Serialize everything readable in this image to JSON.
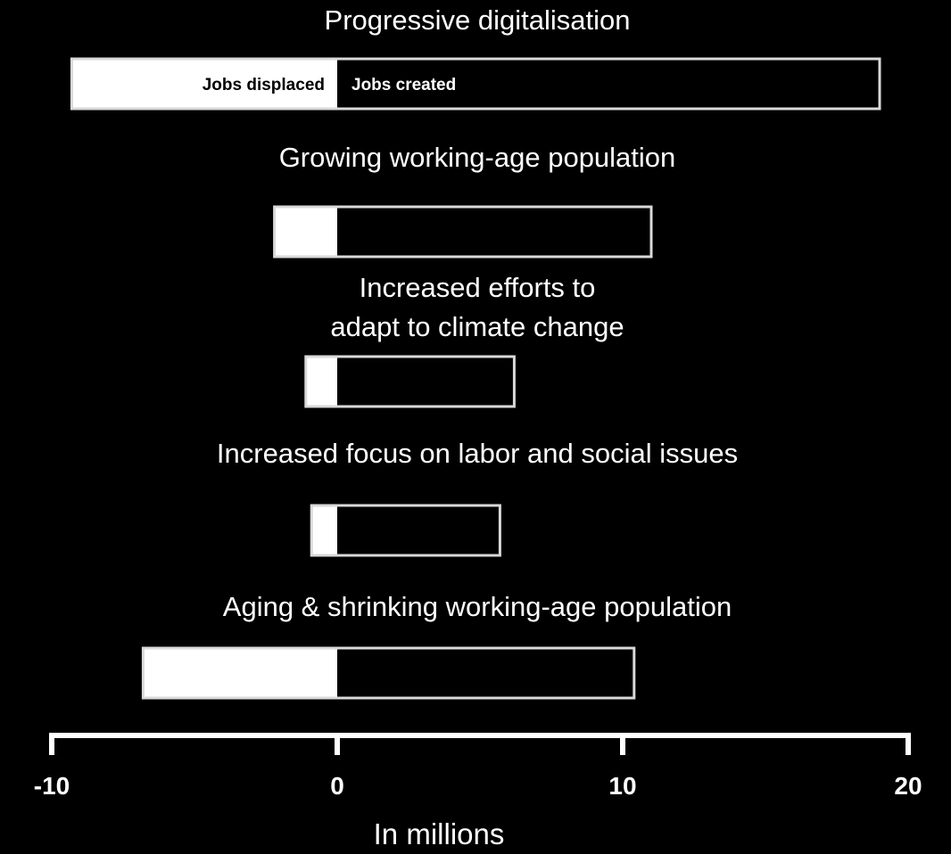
{
  "chart_data": {
    "type": "bar",
    "orientation": "horizontal",
    "stacked": "diverging",
    "categories": [
      "Progressive digitalisation",
      "Growing working-age population",
      "Increased efforts to\nadapt to climate change",
      "Increased focus on labor and social issues",
      "Aging & shrinking working-age population"
    ],
    "series": [
      {
        "name": "Jobs displaced",
        "values": [
          -9.3,
          -2.2,
          -1.1,
          -0.9,
          -6.8
        ],
        "color": "#ffffff"
      },
      {
        "name": "Jobs created",
        "values": [
          19.0,
          11.0,
          6.2,
          5.7,
          10.4
        ],
        "color": "#000000"
      }
    ],
    "xlim": [
      -10,
      20
    ],
    "xticks": [
      -10,
      0,
      10,
      20
    ],
    "xlabel": "In millions",
    "legend": "inside first bar",
    "grid": false
  }
}
